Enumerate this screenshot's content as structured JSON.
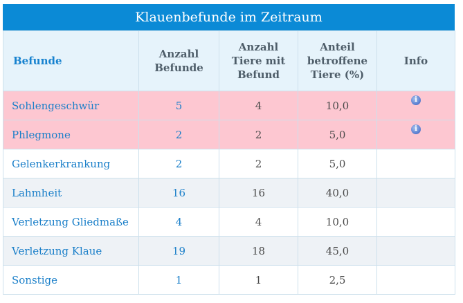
{
  "title": "Klauenbefunde im Zeitraum",
  "headers": {
    "befunde": "Befunde",
    "anzahl_befunde": [
      "Anzahl",
      "Befunde"
    ],
    "anzahl_tiere": [
      "Anzahl",
      "Tiere mit",
      "Befund"
    ],
    "anteil": [
      "Anteil",
      "betroffene",
      "Tiere (%)"
    ],
    "info": "Info"
  },
  "rows": [
    {
      "name": "Sohlengeschwür",
      "befunde": "5",
      "tiere": "4",
      "anteil": "10,0",
      "info": true,
      "highlight": true
    },
    {
      "name": "Phlegmone",
      "befunde": "2",
      "tiere": "2",
      "anteil": "5,0",
      "info": true,
      "highlight": true
    },
    {
      "name": "Gelenkerkrankung",
      "befunde": "2",
      "tiere": "2",
      "anteil": "5,0",
      "info": false,
      "highlight": false
    },
    {
      "name": "Lahmheit",
      "befunde": "16",
      "tiere": "16",
      "anteil": "40,0",
      "info": false,
      "highlight": false
    },
    {
      "name": "Verletzung Gliedmaße",
      "befunde": "4",
      "tiere": "4",
      "anteil": "10,0",
      "info": false,
      "highlight": false
    },
    {
      "name": "Verletzung Klaue",
      "befunde": "19",
      "tiere": "18",
      "anteil": "45,0",
      "info": false,
      "highlight": false
    },
    {
      "name": "Sonstige",
      "befunde": "1",
      "tiere": "1",
      "anteil": "2,5",
      "info": false,
      "highlight": false
    }
  ],
  "info_icon": "info-icon",
  "colors": {
    "title_bg": "#0b8ad6",
    "highlight_row": "#fdc7d1",
    "link_text": "#1a7fc9"
  }
}
